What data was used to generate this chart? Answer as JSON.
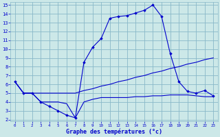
{
  "title": "Graphe des températures (°c)",
  "bg_color": "#cce8e8",
  "grid_color": "#88b8c8",
  "line_color": "#0000cc",
  "xlim": [
    -0.5,
    23.5
  ],
  "ylim": [
    1.8,
    15.3
  ],
  "xticks": [
    0,
    1,
    2,
    3,
    4,
    5,
    6,
    7,
    8,
    9,
    10,
    11,
    12,
    13,
    14,
    15,
    16,
    17,
    18,
    19,
    20,
    21,
    22,
    23
  ],
  "yticks": [
    2,
    3,
    4,
    5,
    6,
    7,
    8,
    9,
    10,
    11,
    12,
    13,
    14,
    15
  ],
  "line1_x": [
    0,
    1,
    2,
    3,
    4,
    5,
    6,
    7,
    8,
    9,
    10,
    11,
    12,
    13,
    14,
    15,
    16,
    17,
    18,
    19,
    20,
    21,
    22,
    23
  ],
  "line1_y": [
    6.3,
    5.0,
    5.0,
    4.0,
    3.5,
    3.0,
    2.5,
    2.2,
    8.5,
    10.2,
    11.2,
    13.5,
    13.7,
    13.8,
    14.1,
    14.4,
    15.0,
    13.7,
    9.5,
    6.3,
    5.2,
    5.0,
    5.3,
    4.7
  ],
  "line2_x": [
    0,
    1,
    2,
    3,
    4,
    5,
    6,
    7,
    8,
    9,
    10,
    11,
    12,
    13,
    14,
    15,
    16,
    17,
    18,
    19,
    20,
    21,
    22,
    23
  ],
  "line2_y": [
    6.3,
    5.0,
    5.0,
    5.0,
    5.0,
    5.0,
    5.0,
    5.0,
    5.3,
    5.5,
    5.8,
    6.0,
    6.3,
    6.5,
    6.8,
    7.0,
    7.3,
    7.5,
    7.8,
    8.0,
    8.3,
    8.5,
    8.8,
    9.0
  ],
  "line3_x": [
    0,
    1,
    2,
    3,
    4,
    5,
    6,
    7,
    8,
    9,
    10,
    11,
    12,
    13,
    14,
    15,
    16,
    17,
    18,
    19,
    20,
    21,
    22,
    23
  ],
  "line3_y": [
    6.3,
    5.0,
    5.0,
    4.0,
    4.0,
    4.0,
    3.8,
    2.2,
    4.0,
    4.3,
    4.5,
    4.5,
    4.5,
    4.5,
    4.6,
    4.6,
    4.7,
    4.7,
    4.8,
    4.8,
    4.8,
    4.7,
    4.6,
    4.6
  ]
}
